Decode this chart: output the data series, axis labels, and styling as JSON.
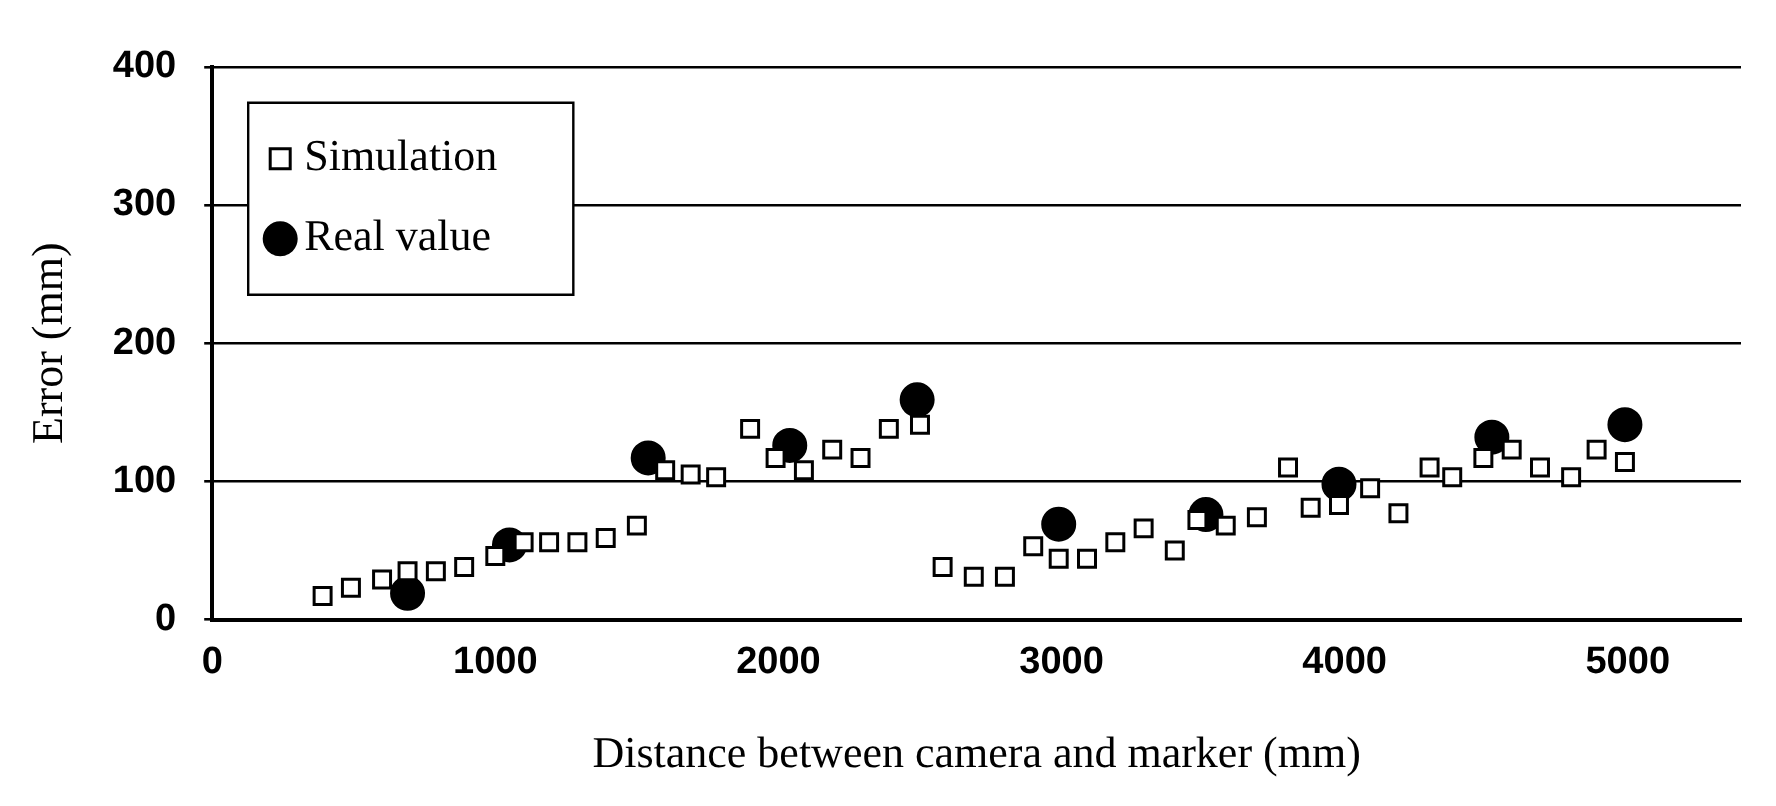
{
  "chart_data": {
    "type": "scatter",
    "xlabel": "Distance between camera and marker (mm)",
    "ylabel": "Error (mm)",
    "xlim": [
      0,
      5400
    ],
    "xticks": [
      0,
      1000,
      2000,
      3000,
      4000,
      5000
    ],
    "ylim": [
      0,
      400
    ],
    "yticks": [
      0,
      100,
      200,
      300,
      400
    ],
    "grid": "y",
    "legend": "top left",
    "series": [
      {
        "name": "Simulation",
        "color": "#000000",
        "marker": "square",
        "x": [
          390,
          490,
          600,
          690,
          790,
          890,
          1000,
          1100,
          1190,
          1290,
          1390,
          1500,
          1600,
          1690,
          1780,
          1900,
          1990,
          2090,
          2190,
          2290,
          2390,
          2500,
          2580,
          2690,
          2800,
          2900,
          2990,
          3090,
          3190,
          3290,
          3400,
          3480,
          3580,
          3690,
          3800,
          3880,
          3980,
          4090,
          4190,
          4300,
          4380,
          4490,
          4590,
          4690,
          4800,
          4890,
          4990
        ],
        "values": [
          17,
          23,
          29,
          35,
          35,
          38,
          46,
          56,
          56,
          56,
          59,
          68,
          108,
          105,
          103,
          138,
          117,
          108,
          123,
          117,
          138,
          141,
          38,
          31,
          31,
          53,
          44,
          44,
          56,
          66,
          50,
          72,
          68,
          74,
          110,
          81,
          83,
          95,
          77,
          110,
          103,
          117,
          123,
          110,
          103,
          123,
          114
        ]
      },
      {
        "name": "Real value",
        "color": "#000000",
        "marker": "circle",
        "x": [
          690,
          1050,
          1540,
          2040,
          2490,
          2990,
          3510,
          3980,
          4520,
          4990
        ],
        "values": [
          19,
          54,
          117,
          126,
          159,
          69,
          76,
          98,
          132,
          141
        ]
      }
    ]
  }
}
